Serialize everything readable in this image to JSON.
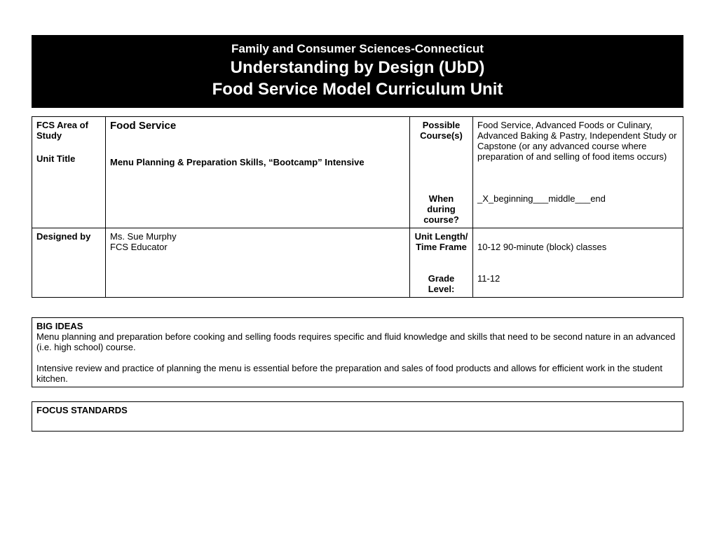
{
  "header": {
    "line1": "Family and Consumer Sciences-Connecticut",
    "line2": "Understanding by Design (UbD)",
    "line3": "Food Service  Model Curriculum Unit"
  },
  "info": {
    "area_label": "FCS Area of Study",
    "area_value": "Food Service",
    "unit_title_label": "Unit Title",
    "unit_title_value": "Menu Planning & Preparation Skills, “Bootcamp” Intensive",
    "possible_courses_label": "Possible Course(s)",
    "possible_courses_value": "Food Service, Advanced Foods or Culinary, Advanced Baking & Pastry, Independent Study or Capstone (or any advanced course where preparation of and selling of food items occurs)",
    "when_label": "When during course?",
    "when_value": "_X_beginning___middle___end",
    "designed_by_label": "Designed by",
    "designed_by_value1": "Ms. Sue Murphy",
    "designed_by_value2": "FCS Educator",
    "unit_length_label": "Unit Length/ Time Frame",
    "unit_length_value": "10-12  90-minute (block) classes",
    "grade_label": "Grade Level:",
    "grade_value": "11-12"
  },
  "big_ideas": {
    "title": "BIG IDEAS",
    "para1": "Menu planning and preparation before cooking and selling foods requires specific and fluid knowledge and skills that need to be second nature in an advanced (i.e. high school) course.",
    "para2": "Intensive review and practice of planning the menu is essential before the preparation and sales of food products and allows for efficient work in the student kitchen."
  },
  "focus": {
    "title": "FOCUS STANDARDS"
  }
}
